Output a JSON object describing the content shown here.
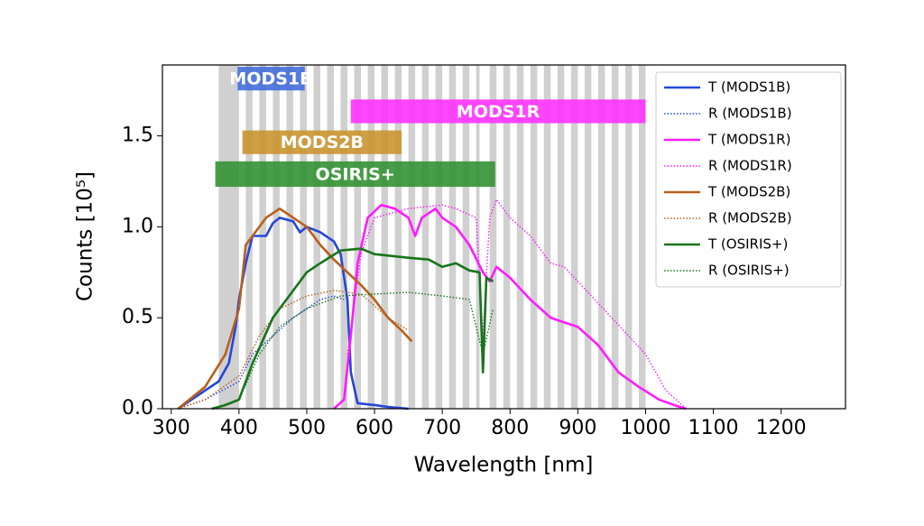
{
  "chart_data": {
    "type": "line",
    "x_label": "Wavelength [nm]",
    "y_label": "Counts [10⁵]",
    "xlim": [
      287,
      1295
    ],
    "ylim": [
      0,
      1.89
    ],
    "xticks": [
      300,
      400,
      500,
      600,
      700,
      800,
      900,
      1000,
      1100,
      1200
    ],
    "yticks": [
      {
        "value": 0,
        "label": "0.0"
      },
      0.5,
      {
        "value": 1,
        "label": "1.0"
      },
      1.5
    ],
    "legend": "upper right",
    "shade_color": "#d0d0d0",
    "shaded_regions": [
      [
        370,
        400
      ],
      [
        410,
        420
      ],
      [
        430,
        440
      ],
      [
        450,
        460
      ],
      [
        470,
        480
      ],
      [
        490,
        500
      ],
      [
        510,
        520
      ],
      [
        530,
        540
      ],
      [
        550,
        560
      ],
      [
        570,
        580
      ],
      [
        590,
        600
      ],
      [
        610,
        620
      ],
      [
        630,
        640
      ],
      [
        650,
        660
      ],
      [
        670,
        680
      ],
      [
        690,
        700
      ],
      [
        710,
        720
      ],
      [
        730,
        740
      ],
      [
        750,
        755
      ],
      [
        770,
        780
      ],
      [
        790,
        800
      ],
      [
        810,
        820
      ],
      [
        830,
        840
      ],
      [
        850,
        860
      ],
      [
        870,
        880
      ],
      [
        890,
        900
      ],
      [
        910,
        920
      ],
      [
        930,
        940
      ],
      [
        950,
        960
      ],
      [
        970,
        980
      ],
      [
        990,
        1000
      ]
    ],
    "bands": [
      {
        "label": "MODS1B",
        "color": "#3f6ad8",
        "x": [
          398,
          497
        ],
        "y": [
          1.75,
          1.88
        ]
      },
      {
        "label": "MODS1R",
        "color": "#ff2cff",
        "x": [
          565,
          1000
        ],
        "y": [
          1.57,
          1.7
        ]
      },
      {
        "label": "MODS2B",
        "color": "#c8922a",
        "x": [
          405,
          640
        ],
        "y": [
          1.4,
          1.53
        ]
      },
      {
        "label": "OSIRIS+",
        "color": "#2f8f2f",
        "x": [
          365,
          778
        ],
        "y": [
          1.22,
          1.36
        ]
      }
    ],
    "series": [
      {
        "name": "T (MODS1B)",
        "color": "#2347d8",
        "style": "solid",
        "x": [
          310,
          330,
          350,
          370,
          385,
          395,
          400,
          410,
          420,
          440,
          450,
          460,
          480,
          490,
          500,
          520,
          540,
          550,
          560,
          565,
          575,
          600,
          620,
          650
        ],
        "values": [
          0,
          0.05,
          0.1,
          0.15,
          0.25,
          0.45,
          0.6,
          0.8,
          0.95,
          0.95,
          1.02,
          1.05,
          1.03,
          0.97,
          1.0,
          0.97,
          0.92,
          0.85,
          0.6,
          0.2,
          0.03,
          0.02,
          0.01,
          0
        ]
      },
      {
        "name": "R (MODS1B)",
        "color": "#2347d8",
        "style": "dotted",
        "x": [
          310,
          350,
          400,
          420,
          450,
          480,
          500,
          520,
          540,
          555
        ],
        "values": [
          0,
          0.05,
          0.15,
          0.3,
          0.4,
          0.5,
          0.55,
          0.6,
          0.62,
          0.6
        ]
      },
      {
        "name": "T (MODS1R)",
        "color": "#ff1aff",
        "style": "solid",
        "x": [
          540,
          555,
          565,
          575,
          590,
          610,
          630,
          650,
          660,
          670,
          690,
          700,
          720,
          740,
          760,
          770,
          780,
          800,
          830,
          860,
          900,
          930,
          960,
          990,
          1020,
          1050,
          1060
        ],
        "values": [
          0,
          0.05,
          0.4,
          0.8,
          1.05,
          1.12,
          1.1,
          1.05,
          0.95,
          1.05,
          1.1,
          1.05,
          1.0,
          0.9,
          0.75,
          0.7,
          0.78,
          0.72,
          0.6,
          0.5,
          0.45,
          0.35,
          0.2,
          0.12,
          0.05,
          0.01,
          0
        ]
      },
      {
        "name": "R (MODS1R)",
        "color": "#ff1aff",
        "style": "dotted",
        "x": [
          560,
          580,
          600,
          650,
          700,
          720,
          750,
          760,
          770,
          780,
          800,
          830,
          860,
          880,
          900,
          950,
          1000,
          1030,
          1060
        ],
        "values": [
          0.3,
          0.85,
          1.05,
          1.1,
          1.12,
          1.1,
          1.05,
          0.4,
          1.05,
          1.15,
          1.05,
          0.95,
          0.8,
          0.78,
          0.7,
          0.5,
          0.3,
          0.1,
          0
        ]
      },
      {
        "name": "T (MODS2B)",
        "color": "#b8601c",
        "style": "solid",
        "x": [
          310,
          350,
          380,
          400,
          410,
          420,
          440,
          460,
          480,
          500,
          520,
          540,
          560,
          580,
          600,
          620,
          640,
          655
        ],
        "values": [
          0,
          0.12,
          0.3,
          0.55,
          0.9,
          0.95,
          1.05,
          1.1,
          1.05,
          1.0,
          0.9,
          0.82,
          0.75,
          0.68,
          0.6,
          0.5,
          0.43,
          0.37
        ]
      },
      {
        "name": "R (MODS2B)",
        "color": "#b8601c",
        "style": "dotted",
        "x": [
          310,
          350,
          400,
          430,
          460,
          500,
          540,
          580,
          620,
          650
        ],
        "values": [
          0,
          0.05,
          0.18,
          0.4,
          0.55,
          0.62,
          0.65,
          0.63,
          0.5,
          0.43
        ]
      },
      {
        "name": "T (OSIRIS+)",
        "color": "#17751a",
        "style": "solid",
        "x": [
          360,
          380,
          400,
          420,
          450,
          480,
          500,
          520,
          550,
          580,
          600,
          650,
          680,
          700,
          720,
          740,
          755,
          760,
          765,
          775
        ],
        "values": [
          0,
          0.02,
          0.05,
          0.25,
          0.5,
          0.65,
          0.75,
          0.8,
          0.87,
          0.88,
          0.85,
          0.83,
          0.82,
          0.78,
          0.8,
          0.76,
          0.75,
          0.2,
          0.72,
          0.7
        ]
      },
      {
        "name": "R (OSIRIS+)",
        "color": "#17751a",
        "style": "dotted",
        "x": [
          360,
          400,
          430,
          460,
          500,
          550,
          600,
          650,
          700,
          740,
          760,
          775
        ],
        "values": [
          0,
          0.05,
          0.3,
          0.45,
          0.55,
          0.62,
          0.63,
          0.64,
          0.62,
          0.6,
          0.3,
          0.55
        ]
      }
    ]
  }
}
